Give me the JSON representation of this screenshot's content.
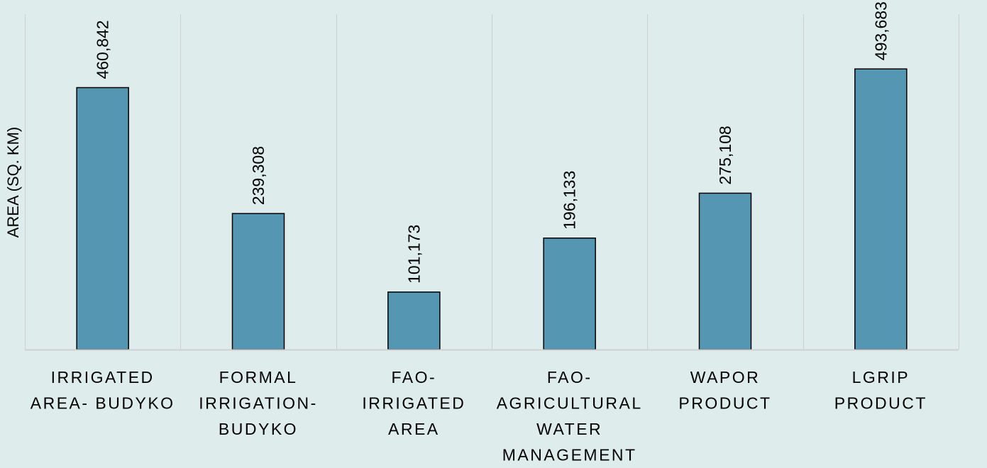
{
  "chart_data": {
    "type": "bar",
    "title": "",
    "xlabel": "",
    "ylabel": "AREA (SQ. KM)",
    "categories": [
      [
        "IRRIGATED",
        "AREA- BUDYKO"
      ],
      [
        "FORMAL",
        "IRRIGATION-",
        "BUDYKO"
      ],
      [
        "FAO-",
        "IRRIGATED",
        "AREA"
      ],
      [
        "FAO-",
        "AGRICULTURAL",
        "WATER",
        "MANAGEMENT"
      ],
      [
        "WAPOR",
        "PRODUCT"
      ],
      [
        "LGRIP",
        "PRODUCT"
      ]
    ],
    "values": [
      460842,
      239308,
      101173,
      196133,
      275108,
      493683
    ],
    "data_labels": [
      "460,842",
      "239,308",
      "101,173",
      "196,133",
      "275,108",
      "493,683"
    ],
    "ylim": [
      0,
      590000
    ],
    "grid": "vertical separators",
    "legend": "none",
    "colors": {
      "bar": "#5596b3",
      "bar_border": "#000000",
      "background": "#deecec",
      "grid": "#cfcfcf"
    }
  }
}
